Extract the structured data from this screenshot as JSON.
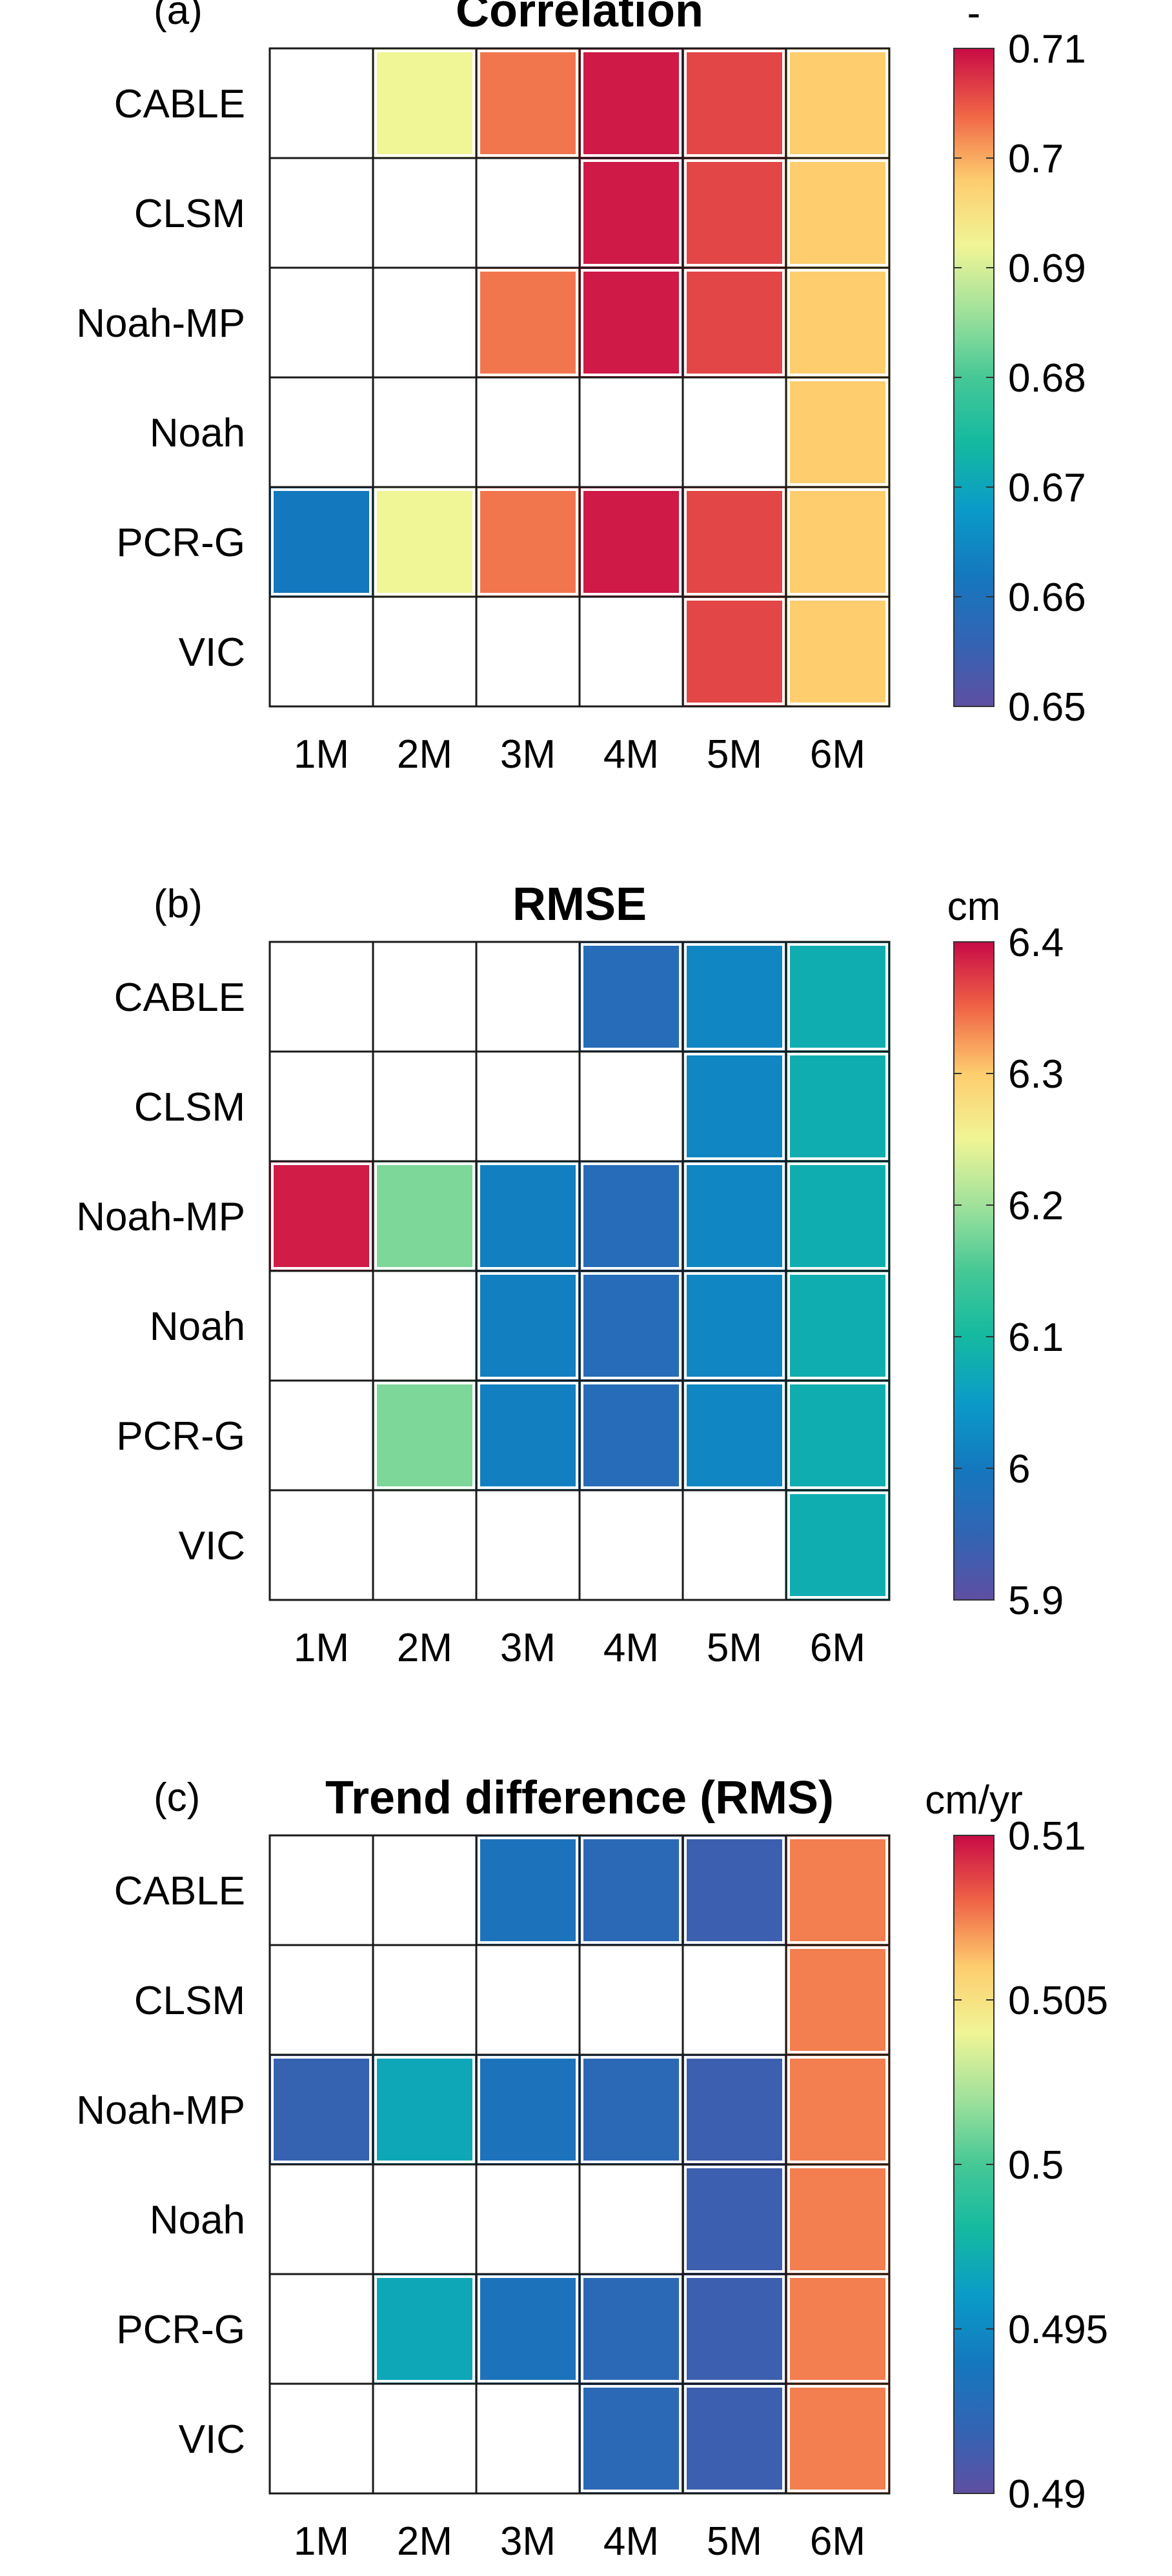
{
  "chart_data": [
    {
      "type": "heatmap",
      "panel_label": "(a)",
      "title": "Correlation",
      "unit": "-",
      "x_categories": [
        "1M",
        "2M",
        "3M",
        "4M",
        "5M",
        "6M"
      ],
      "y_categories": [
        "CABLE",
        "CLSM",
        "Noah-MP",
        "Noah",
        "PCR-G",
        "VIC"
      ],
      "colorbar": {
        "min": 0.65,
        "max": 0.71,
        "ticks": [
          0.65,
          0.66,
          0.67,
          0.68,
          0.69,
          0.7,
          0.71
        ],
        "tick_labels": [
          "0.65",
          "0.66",
          "0.67",
          "0.68",
          "0.69",
          "0.7",
          "0.71"
        ]
      },
      "values": [
        [
          null,
          0.692,
          0.703,
          0.709,
          0.706,
          0.698
        ],
        [
          null,
          null,
          null,
          0.709,
          0.706,
          0.698
        ],
        [
          null,
          null,
          0.703,
          0.709,
          0.706,
          0.698
        ],
        [
          null,
          null,
          null,
          null,
          null,
          0.698
        ],
        [
          0.662,
          0.692,
          0.703,
          0.709,
          0.706,
          0.698
        ],
        [
          null,
          null,
          null,
          null,
          0.706,
          0.698
        ]
      ]
    },
    {
      "type": "heatmap",
      "panel_label": "(b)",
      "title": "RMSE",
      "unit": "cm",
      "x_categories": [
        "1M",
        "2M",
        "3M",
        "4M",
        "5M",
        "6M"
      ],
      "y_categories": [
        "CABLE",
        "CLSM",
        "Noah-MP",
        "Noah",
        "PCR-G",
        "VIC"
      ],
      "colorbar": {
        "min": 5.9,
        "max": 6.4,
        "ticks": [
          5.9,
          6.0,
          6.1,
          6.2,
          6.3,
          6.4
        ],
        "tick_labels": [
          "5.9",
          "6",
          "6.1",
          "6.2",
          "6.3",
          "6.4"
        ]
      },
      "values": [
        [
          null,
          null,
          null,
          5.97,
          6.02,
          6.08
        ],
        [
          null,
          null,
          null,
          null,
          6.02,
          6.08
        ],
        [
          6.39,
          6.18,
          6.01,
          5.97,
          6.02,
          6.08
        ],
        [
          null,
          null,
          6.01,
          5.97,
          6.02,
          6.08
        ],
        [
          null,
          6.18,
          6.01,
          5.97,
          6.02,
          6.08
        ],
        [
          null,
          null,
          null,
          null,
          null,
          6.08
        ]
      ]
    },
    {
      "type": "heatmap",
      "panel_label": "(c)",
      "title": "Trend difference (RMS)",
      "unit": "cm/yr",
      "x_categories": [
        "1M",
        "2M",
        "3M",
        "4M",
        "5M",
        "6M"
      ],
      "y_categories": [
        "CABLE",
        "CLSM",
        "Noah-MP",
        "Noah",
        "PCR-G",
        "VIC"
      ],
      "colorbar": {
        "min": 0.49,
        "max": 0.51,
        "ticks": [
          0.49,
          0.495,
          0.5,
          0.505,
          0.51
        ],
        "tick_labels": [
          "0.49",
          "0.495",
          "0.5",
          "0.505",
          "0.51"
        ]
      },
      "values": [
        [
          null,
          null,
          0.4935,
          0.4925,
          0.4915,
          0.5075
        ],
        [
          null,
          null,
          null,
          null,
          null,
          0.5075
        ],
        [
          0.4918,
          0.4968,
          0.4935,
          0.4925,
          0.4915,
          0.5075
        ],
        [
          null,
          null,
          null,
          null,
          0.4915,
          0.5075
        ],
        [
          null,
          0.4968,
          0.4935,
          0.4925,
          0.4915,
          0.5075
        ],
        [
          null,
          null,
          null,
          0.4925,
          0.4915,
          0.5075
        ]
      ]
    }
  ]
}
